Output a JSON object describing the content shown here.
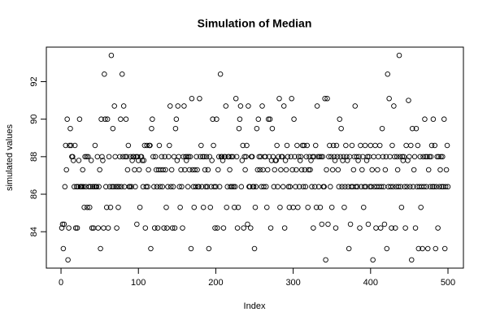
{
  "chart_data": {
    "type": "scatter",
    "title": "Simulation of Median",
    "xlabel": "Index",
    "ylabel": "simulated values",
    "color": "#000000",
    "xlim": [
      -18.96,
      519.96
    ],
    "xticks": [
      0,
      100,
      200,
      300,
      400,
      500
    ],
    "ylim": [
      82.06,
      93.84
    ],
    "yticks": [
      84,
      86,
      88,
      90,
      92
    ],
    "values": [
      84.2,
      84.4,
      83.1,
      84.4,
      86.4,
      88.6,
      87.3,
      90,
      82.5,
      84.2,
      88.6,
      89.5,
      88.6,
      88,
      88,
      87.8,
      86.4,
      88.6,
      84.2,
      86.4,
      84.2,
      86.4,
      87.8,
      90,
      86.4,
      86.4,
      86.4,
      87.3,
      86.4,
      85.3,
      88,
      86.4,
      88,
      85.3,
      88,
      86.4,
      85.3,
      86.4,
      87.8,
      84.2,
      86.4,
      84.2,
      86.4,
      88.6,
      86.4,
      86.4,
      88,
      84.2,
      86.4,
      87.3,
      83.1,
      90,
      88,
      87.8,
      84.2,
      92.4,
      90,
      86.4,
      85.3,
      90,
      84.2,
      88,
      86.4,
      85.3,
      93.4,
      86.4,
      89.5,
      86.4,
      90.7,
      88,
      86.4,
      84.2,
      86.4,
      85.3,
      86.4,
      88,
      90,
      86.4,
      92.4,
      88,
      90.7,
      86.4,
      88,
      90,
      88,
      87.3,
      88.6,
      86.4,
      86.4,
      88,
      86.4,
      87.8,
      88,
      88,
      87.3,
      86.4,
      88,
      84.4,
      88,
      87.8,
      87.3,
      85.3,
      88,
      88,
      87.8,
      86.4,
      87.8,
      88.6,
      84.2,
      86.4,
      88.6,
      86.4,
      87.3,
      88.6,
      88.6,
      83.1,
      89.5,
      90,
      88,
      86.4,
      84.2,
      88,
      87.3,
      86.4,
      84.2,
      87.3,
      88.6,
      86.4,
      87.3,
      88,
      86.4,
      87.3,
      84.2,
      88,
      87.3,
      85.3,
      84.2,
      86.4,
      88,
      88.6,
      90.7,
      86.4,
      87.3,
      84.2,
      86.4,
      88,
      84.2,
      89.5,
      90,
      87.8,
      90.7,
      88,
      86.4,
      85.3,
      87.3,
      86.4,
      84.2,
      88,
      90.7,
      87.3,
      88,
      87.8,
      88,
      86.4,
      88,
      87.3,
      88,
      83.1,
      91.1,
      87.3,
      86.4,
      85.3,
      87.3,
      86.4,
      88,
      87.3,
      86.4,
      86.4,
      91.1,
      88,
      88.6,
      86.4,
      88,
      85.3,
      88,
      87.3,
      86.4,
      88,
      86.4,
      87.3,
      83.1,
      88,
      85.3,
      86.4,
      87.8,
      90,
      88.6,
      86.4,
      84.2,
      86.4,
      90,
      84.2,
      87.3,
      88,
      86.4,
      92.4,
      88,
      88,
      87.8,
      84.2,
      88,
      88,
      90.7,
      85.3,
      86.4,
      88,
      88,
      87.3,
      86.4,
      88,
      86.4,
      88,
      86.4,
      85.3,
      86.4,
      91.1,
      88,
      84.2,
      85.3,
      89.5,
      90,
      90.7,
      86.4,
      87.8,
      88.6,
      84.2,
      88,
      87.3,
      88,
      88.6,
      84.4,
      90.7,
      86.4,
      86.4,
      84.2,
      88,
      88,
      86.4,
      86.4,
      83.1,
      85.3,
      86.4,
      89.5,
      87.3,
      90,
      88,
      87.3,
      88,
      86.4,
      90.7,
      87.3,
      86.4,
      88,
      88,
      86.4,
      85.3,
      87.3,
      90,
      88,
      90,
      84.2,
      87.8,
      89.5,
      88,
      86.4,
      87.3,
      87.8,
      87.8,
      88.6,
      86.4,
      88,
      91.1,
      85.3,
      87.3,
      88,
      88,
      86.4,
      90.7,
      84.2,
      87.8,
      87.3,
      88.6,
      88,
      86.4,
      85.3,
      86.4,
      88,
      91.1,
      87.3,
      85.3,
      90,
      88,
      86.4,
      87.3,
      88.6,
      85.3,
      88,
      86.4,
      87.8,
      88,
      87.3,
      88.6,
      86.4,
      88.6,
      87.3,
      86.4,
      88,
      88.6,
      85.3,
      87.3,
      88,
      87.3,
      87.8,
      86.4,
      88,
      84.2,
      88,
      86.4,
      88.6,
      85.3,
      90.7,
      88,
      86.4,
      88,
      85.3,
      88,
      84.4,
      88,
      86.4,
      86.4,
      91.1,
      82.5,
      87.3,
      91.1,
      84.4,
      88,
      88.6,
      86.4,
      88,
      85.3,
      87.3,
      88.6,
      88,
      87.8,
      84.2,
      88.6,
      88,
      87.3,
      86.4,
      90,
      88,
      89.5,
      86.4,
      87.8,
      88,
      85.3,
      86.4,
      88.6,
      88,
      87.8,
      86.4,
      83.1,
      88,
      84.4,
      86.4,
      88.6,
      86.4,
      87.3,
      88,
      90.7,
      86.4,
      88,
      86.4,
      87.8,
      88,
      84.2,
      88.6,
      86.4,
      87.3,
      88,
      85.3,
      86.4,
      88.6,
      86.4,
      87.8,
      88,
      84.4,
      88,
      86.4,
      88.6,
      86.4,
      87.3,
      82.5,
      88,
      86.4,
      88.6,
      84.2,
      86.4,
      87.3,
      88,
      86.4,
      88.6,
      84.2,
      86.4,
      89.5,
      88,
      86.4,
      84.4,
      87.3,
      88,
      83.1,
      92.4,
      86.4,
      91.1,
      88,
      86.4,
      84.2,
      88.6,
      86.4,
      90.7,
      88,
      84.2,
      86.4,
      88,
      87.3,
      86.4,
      93.4,
      88,
      86.4,
      85.3,
      88,
      87.8,
      88,
      86.4,
      84.2,
      88.6,
      86.4,
      87.8,
      91,
      88,
      86.4,
      88.6,
      82.5,
      89.5,
      86.4,
      87.3,
      88,
      84.2,
      89.5,
      86.4,
      88.6,
      83.1,
      86.4,
      88,
      85.3,
      86.4,
      83.1,
      88,
      86.4,
      90,
      88,
      86.4,
      88,
      83.1,
      87.3,
      88,
      86.4,
      88,
      88.6,
      86.4,
      90,
      86.4,
      88.6,
      83.1,
      86.4,
      88,
      84.2,
      88,
      86.4,
      87.3,
      88,
      86.4,
      88,
      86.4,
      90,
      83.1,
      86.4,
      87.3,
      88.6,
      86.4
    ]
  }
}
